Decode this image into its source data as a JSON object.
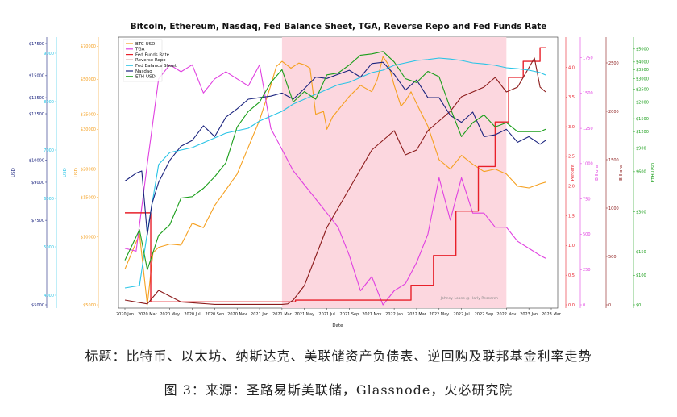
{
  "chart_data": {
    "type": "line",
    "title": "Bitcoin, Ethereum, Nasdaq, Fed Balance Sheet, TGA, Reverse Repo and Fed Funds Rate",
    "xlabel": "Date",
    "x_ticks": [
      "2020 Jan",
      "2020 Mar",
      "2020 May",
      "2020 Jul",
      "2020 Sep",
      "2020 Nov",
      "2021 Jan",
      "2021 Mar",
      "2021 May",
      "2021 Jul",
      "2021 Sep",
      "2021 Nov",
      "2022 Jan",
      "2022 Mar",
      "2022 May",
      "2022 Jul",
      "2022 Sep",
      "2022 Nov",
      "2023 Jan",
      "2023 Mar"
    ],
    "x_dates": [
      "2020-01",
      "2020-03",
      "2020-05",
      "2020-07",
      "2020-09",
      "2020-11",
      "2021-01",
      "2021-03",
      "2021-05",
      "2021-07",
      "2021-09",
      "2021-11",
      "2022-01",
      "2022-03",
      "2022-05",
      "2022-07",
      "2022-09",
      "2022-11",
      "2023-01",
      "2023-03"
    ],
    "shaded_period": [
      "2021-03",
      "2022-11"
    ],
    "watermark": "Johnny Loans @ Harly Research",
    "axes": {
      "usd_nasdaq": {
        "label": "USD",
        "color": "#1a237e",
        "ticks": [
          "$5000",
          "$7500",
          "$9000",
          "$10000",
          "$12500",
          "$13500",
          "$15000",
          "$17500"
        ]
      },
      "usd_fed": {
        "label": "USD",
        "color": "#29c4e6",
        "ticks": [
          "4000",
          "5000",
          "6000",
          "7000",
          "8000",
          "9000"
        ]
      },
      "usd_btc": {
        "label": "USD",
        "color": "#f5a020",
        "ticks": [
          "$5000",
          "$10000",
          "$15000",
          "$20000",
          "$30000",
          "$35000",
          "$50000",
          "$70000"
        ]
      },
      "percent": {
        "label": "Percent",
        "color": "#e8202a",
        "ticks": [
          "0.0",
          "0.5",
          "1.0",
          "1.5",
          "2.0",
          "2.5",
          "3.0",
          "3.5",
          "4.0"
        ]
      },
      "billions_tga": {
        "label": "Billions",
        "color": "#e040e0",
        "ticks": [
          "0",
          "250",
          "500",
          "750",
          "1000",
          "1250",
          "1500",
          "1750"
        ]
      },
      "billions_rrp": {
        "label": "Billions",
        "color": "#8b1a1a",
        "ticks": [
          "0",
          "500",
          "1000",
          "1500",
          "2000",
          "2500"
        ]
      },
      "usd_eth": {
        "label": "ETH-USD",
        "color": "#1a9e1a",
        "ticks": [
          "$0",
          "$100",
          "$150",
          "$300",
          "$600",
          "$900",
          "$1200",
          "$1500",
          "$2000",
          "$2500",
          "$3000",
          "$3500",
          "$4000",
          "$5000"
        ]
      }
    },
    "series": [
      {
        "name": "BTC-USD",
        "color": "#f5a020",
        "axis": "usd_btc",
        "t": [
          0,
          1.3,
          2,
          2.5,
          3,
          4,
          5,
          6,
          7,
          8,
          10,
          12,
          13,
          13.5,
          14,
          14.8,
          15.5,
          16,
          16.5,
          17,
          17.7,
          18,
          18.5,
          20,
          21,
          22,
          22.5,
          23,
          23.5,
          24,
          24.6,
          25,
          25.5,
          26,
          27,
          28,
          29,
          30,
          31,
          32,
          33,
          34,
          35,
          36,
          37,
          37.5
        ],
        "v": [
          7200,
          10300,
          5000,
          8500,
          9000,
          9300,
          9200,
          11500,
          11000,
          13800,
          19000,
          33000,
          47000,
          57000,
          60000,
          56000,
          59000,
          58000,
          56000,
          35000,
          36000,
          30000,
          34000,
          42000,
          47000,
          44000,
          50000,
          63000,
          58000,
          47000,
          38000,
          40000,
          44000,
          39000,
          31000,
          22000,
          20000,
          23000,
          21000,
          19500,
          20000,
          19000,
          16800,
          16500,
          17200,
          17500
        ]
      },
      {
        "name": "TGA",
        "color": "#e040e0",
        "axis": "billions_tga",
        "t": [
          0,
          1,
          2,
          3,
          4,
          5,
          6,
          7,
          8,
          9,
          10,
          11,
          12,
          13,
          14,
          15,
          16,
          17,
          18,
          19,
          20,
          21,
          22,
          23,
          24,
          25,
          26,
          27,
          28,
          29,
          30,
          31,
          32,
          33,
          34,
          35,
          36,
          37,
          37.5
        ],
        "v": [
          400,
          380,
          1000,
          1600,
          1700,
          1650,
          1700,
          1500,
          1600,
          1650,
          1600,
          1550,
          1700,
          1250,
          1100,
          950,
          850,
          750,
          650,
          550,
          350,
          100,
          200,
          0,
          100,
          150,
          300,
          500,
          900,
          600,
          900,
          650,
          650,
          550,
          550,
          450,
          400,
          350,
          330
        ]
      },
      {
        "name": "Fed Funds Rate",
        "color": "#e8202a",
        "axis": "percent",
        "t": [
          0,
          2,
          2.3,
          14,
          14.8,
          15.2,
          25,
          25.5,
          26.5,
          27.5,
          28.5,
          29.5,
          30.5,
          31.5,
          33,
          34.2,
          35,
          35.5,
          36.5,
          37,
          37.5
        ],
        "v": [
          1.55,
          1.55,
          0.05,
          0.05,
          0.05,
          0.08,
          0.08,
          0.33,
          0.33,
          0.83,
          0.83,
          1.58,
          1.58,
          2.33,
          3.08,
          3.83,
          3.83,
          4.1,
          4.1,
          4.33,
          4.33
        ]
      },
      {
        "name": "Reverse Repo",
        "color": "#8b1a1a",
        "axis": "billions_rrp",
        "t": [
          0,
          2,
          3,
          5,
          8,
          10,
          12,
          14,
          14.5,
          15,
          16,
          16.5,
          17,
          18,
          19,
          20,
          21,
          22,
          23,
          24,
          25,
          26,
          27,
          28,
          29,
          30,
          31,
          32,
          33,
          34,
          35,
          36,
          36.5,
          37,
          37.5
        ],
        "v": [
          50,
          10,
          150,
          30,
          5,
          5,
          5,
          5,
          10,
          50,
          200,
          350,
          500,
          800,
          1000,
          1200,
          1400,
          1600,
          1700,
          1800,
          1550,
          1600,
          1800,
          1900,
          2000,
          2150,
          2200,
          2250,
          2350,
          2200,
          2250,
          2450,
          2550,
          2250,
          2200
        ]
      },
      {
        "name": "Fed Balance Sheet",
        "color": "#29c4e6",
        "axis": "usd_fed",
        "t": [
          0,
          1.3,
          2,
          3,
          4,
          5,
          6,
          7,
          8,
          9,
          10,
          11,
          12,
          13,
          14,
          15,
          16,
          17,
          18,
          19,
          20,
          21,
          22,
          23,
          24,
          25,
          26,
          27,
          28,
          29,
          30,
          31,
          32,
          33,
          34,
          35,
          36,
          37,
          37.5
        ],
        "v": [
          4150,
          4200,
          5300,
          6700,
          6950,
          7000,
          7050,
          7150,
          7250,
          7350,
          7400,
          7450,
          7600,
          7700,
          7800,
          7950,
          8050,
          8150,
          8250,
          8350,
          8400,
          8500,
          8600,
          8650,
          8750,
          8800,
          8850,
          8870,
          8900,
          8880,
          8850,
          8800,
          8780,
          8750,
          8700,
          8680,
          8650,
          8600,
          8550
        ]
      },
      {
        "name": "Nasdaq",
        "color": "#1a237e",
        "axis": "usd_nasdaq",
        "t": [
          0,
          1,
          1.5,
          2,
          2.4,
          3,
          4,
          5,
          6,
          7,
          8,
          9,
          10,
          11,
          12,
          13,
          14,
          15,
          16,
          17,
          18,
          19,
          20,
          21,
          22,
          23,
          24,
          25,
          26,
          27,
          28,
          29,
          30,
          31,
          32,
          33,
          34,
          35,
          36,
          37,
          37.5
        ],
        "v": [
          9050,
          9400,
          9500,
          7000,
          8100,
          9000,
          10000,
          10700,
          11000,
          11800,
          11200,
          12300,
          12800,
          13400,
          13500,
          13600,
          13800,
          13400,
          14100,
          14900,
          14800,
          15100,
          15400,
          14900,
          15900,
          16000,
          15100,
          14000,
          14700,
          13500,
          13500,
          12400,
          12000,
          12600,
          11200,
          11300,
          11600,
          10900,
          11200,
          10800,
          11000
        ]
      },
      {
        "name": "ETH-USD",
        "color": "#1a9e1a",
        "axis": "usd_eth",
        "t": [
          0,
          1.3,
          2,
          3,
          4,
          5,
          6,
          7,
          8,
          9,
          10,
          11,
          12,
          13,
          14,
          15,
          16,
          17,
          18,
          19,
          20,
          21,
          22,
          23,
          24,
          25,
          26,
          27,
          28,
          29,
          30,
          31,
          32,
          33,
          34,
          35,
          36,
          37,
          37.5
        ],
        "v": [
          130,
          220,
          110,
          200,
          240,
          380,
          390,
          450,
          550,
          700,
          1300,
          1700,
          2000,
          2800,
          3500,
          2000,
          2400,
          2100,
          3200,
          3300,
          3800,
          4500,
          4600,
          4800,
          4000,
          3000,
          2800,
          3400,
          3100,
          1800,
          1100,
          1400,
          1600,
          1300,
          1400,
          1200,
          1200,
          1200,
          1250
        ]
      }
    ]
  },
  "caption": {
    "line1": "标题：比特币、以太坊、纳斯达克、美联储资产负债表、逆回购及联邦基金利率走势",
    "line2": "图 3：来源：圣路易斯美联储，Glassnode，火必研究院"
  }
}
